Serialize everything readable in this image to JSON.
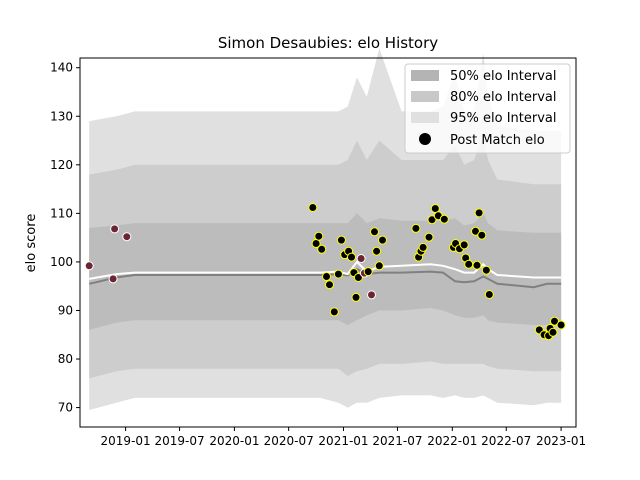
{
  "chart_data": {
    "type": "scatter",
    "title": "Simon Desaubies: elo History",
    "xlabel": "",
    "ylabel": "elo score",
    "xlim": [
      "2018-08-01",
      "2023-02-20"
    ],
    "ylim": [
      66,
      142
    ],
    "x_ticks": [
      "2019-01",
      "2019-07",
      "2020-01",
      "2020-07",
      "2021-01",
      "2021-07",
      "2022-01",
      "2022-07",
      "2023-01"
    ],
    "y_ticks": [
      70,
      80,
      90,
      100,
      110,
      120,
      130,
      140
    ],
    "grid": false,
    "legend_position": "top-right",
    "legend": [
      "50% elo Interval",
      "80% elo Interval",
      "95% elo Interval",
      "Post Match elo"
    ],
    "colors": {
      "band_95": "#e0e0e0",
      "band_80": "#cdcdcd",
      "band_50": "#bcbcbc",
      "mean_line": "#ffffff",
      "median_line": "#808080",
      "dot_early_fill": "#6b2533",
      "dot_late_fill": "#000000",
      "dot_late_edge": "#ffff00",
      "dot_early_edge": "#ffffff"
    },
    "bands": {
      "dates": [
        "2018-09-01",
        "2018-12-01",
        "2019-02-01",
        "2020-10-15",
        "2020-12-15",
        "2021-01-15",
        "2021-02-15",
        "2021-03-20",
        "2021-05-01",
        "2021-07-15",
        "2021-10-20",
        "2021-12-01",
        "2022-01-10",
        "2022-02-10",
        "2022-03-15",
        "2022-04-15",
        "2022-05-01",
        "2022-06-01",
        "2022-10-01",
        "2022-11-15",
        "2023-01-01"
      ],
      "p95_low": [
        69.5,
        71,
        72,
        72,
        71,
        70,
        71,
        71,
        72,
        72.5,
        72.5,
        72,
        72.5,
        72,
        72,
        72.5,
        72,
        71,
        70.5,
        71,
        71
      ],
      "p95_high": [
        129,
        130,
        131,
        131,
        131,
        132,
        138,
        134,
        144,
        131,
        131,
        132,
        139,
        131,
        131,
        143,
        134,
        128,
        127,
        127,
        127
      ],
      "p80_low": [
        76,
        77.5,
        78,
        78,
        78,
        76.5,
        77.5,
        78,
        79,
        79,
        79.5,
        79,
        79,
        79,
        79,
        79,
        78.5,
        78,
        77.5,
        77.5,
        77.5
      ],
      "p80_high": [
        118,
        119,
        120,
        120,
        120,
        121,
        125,
        121,
        125,
        121,
        121,
        121,
        124,
        120,
        121,
        126,
        121,
        117,
        116,
        116,
        116
      ],
      "p50_low": [
        86,
        87.5,
        88,
        88,
        88,
        87,
        88,
        89,
        90,
        90,
        90.5,
        90,
        89,
        88.5,
        88.5,
        89,
        88,
        87.5,
        87,
        87,
        87
      ],
      "p50_high": [
        107,
        107.5,
        108,
        108,
        108,
        108,
        110,
        108,
        109,
        108.5,
        108.5,
        108.5,
        109,
        107.5,
        108,
        110,
        108,
        106.5,
        106,
        106,
        106
      ],
      "mean": [
        96.5,
        97.5,
        97.8,
        97.8,
        98,
        97.5,
        100,
        98,
        99,
        99.2,
        99.5,
        99.2,
        98.5,
        97.8,
        97.8,
        99.5,
        98.5,
        97.3,
        96.8,
        96.8,
        96.8
      ],
      "median": [
        95.5,
        96.8,
        97.3,
        97.3,
        97.5,
        97.2,
        98.5,
        97.5,
        97.8,
        97.8,
        98,
        97.8,
        96,
        95.8,
        96,
        97,
        96.5,
        95.5,
        94.8,
        95.5,
        95.5
      ]
    },
    "series": [
      {
        "name": "Post Match elo",
        "points": [
          {
            "x": "2018-09-01",
            "y": 99.2,
            "group": "early"
          },
          {
            "x": "2018-11-20",
            "y": 96.5,
            "group": "early"
          },
          {
            "x": "2018-11-25",
            "y": 106.8,
            "group": "early"
          },
          {
            "x": "2019-01-05",
            "y": 105.2,
            "group": "early"
          },
          {
            "x": "2020-09-20",
            "y": 111.2,
            "group": "late"
          },
          {
            "x": "2020-10-01",
            "y": 103.8,
            "group": "late"
          },
          {
            "x": "2020-10-10",
            "y": 105.3,
            "group": "late"
          },
          {
            "x": "2020-10-20",
            "y": 102.6,
            "group": "late"
          },
          {
            "x": "2020-11-05",
            "y": 97.0,
            "group": "late"
          },
          {
            "x": "2020-11-15",
            "y": 95.3,
            "group": "late"
          },
          {
            "x": "2020-12-01",
            "y": 89.7,
            "group": "late"
          },
          {
            "x": "2020-12-15",
            "y": 97.5,
            "group": "late"
          },
          {
            "x": "2020-12-25",
            "y": 104.5,
            "group": "late"
          },
          {
            "x": "2021-01-05",
            "y": 101.5,
            "group": "late"
          },
          {
            "x": "2021-01-18",
            "y": 102.2,
            "group": "late"
          },
          {
            "x": "2021-01-28",
            "y": 101.0,
            "group": "late"
          },
          {
            "x": "2021-02-05",
            "y": 97.8,
            "group": "late"
          },
          {
            "x": "2021-02-12",
            "y": 92.7,
            "group": "late"
          },
          {
            "x": "2021-02-20",
            "y": 96.8,
            "group": "late"
          },
          {
            "x": "2021-03-01",
            "y": 100.7,
            "group": "early"
          },
          {
            "x": "2021-03-12",
            "y": 97.7,
            "group": "early"
          },
          {
            "x": "2021-03-25",
            "y": 98.0,
            "group": "late"
          },
          {
            "x": "2021-04-05",
            "y": 93.2,
            "group": "early"
          },
          {
            "x": "2021-04-15",
            "y": 106.2,
            "group": "late"
          },
          {
            "x": "2021-04-22",
            "y": 102.2,
            "group": "late"
          },
          {
            "x": "2021-05-01",
            "y": 99.2,
            "group": "late"
          },
          {
            "x": "2021-05-12",
            "y": 104.5,
            "group": "late"
          },
          {
            "x": "2021-09-01",
            "y": 106.9,
            "group": "late"
          },
          {
            "x": "2021-09-10",
            "y": 101.0,
            "group": "late"
          },
          {
            "x": "2021-09-18",
            "y": 102.2,
            "group": "late"
          },
          {
            "x": "2021-09-25",
            "y": 103.0,
            "group": "late"
          },
          {
            "x": "2021-10-15",
            "y": 105.1,
            "group": "late"
          },
          {
            "x": "2021-10-25",
            "y": 108.7,
            "group": "late"
          },
          {
            "x": "2021-11-05",
            "y": 111.0,
            "group": "late"
          },
          {
            "x": "2021-11-15",
            "y": 109.5,
            "group": "late"
          },
          {
            "x": "2021-12-05",
            "y": 108.8,
            "group": "late"
          },
          {
            "x": "2022-01-05",
            "y": 103.0,
            "group": "late"
          },
          {
            "x": "2022-01-12",
            "y": 103.8,
            "group": "late"
          },
          {
            "x": "2022-01-25",
            "y": 102.7,
            "group": "late"
          },
          {
            "x": "2022-02-10",
            "y": 103.5,
            "group": "late"
          },
          {
            "x": "2022-02-15",
            "y": 100.8,
            "group": "late"
          },
          {
            "x": "2022-02-25",
            "y": 99.5,
            "group": "late"
          },
          {
            "x": "2022-03-20",
            "y": 106.3,
            "group": "late"
          },
          {
            "x": "2022-03-25",
            "y": 99.3,
            "group": "late"
          },
          {
            "x": "2022-04-01",
            "y": 110.1,
            "group": "late"
          },
          {
            "x": "2022-04-10",
            "y": 105.5,
            "group": "late"
          },
          {
            "x": "2022-04-25",
            "y": 98.3,
            "group": "late"
          },
          {
            "x": "2022-05-05",
            "y": 93.3,
            "group": "late"
          },
          {
            "x": "2022-10-20",
            "y": 86.0,
            "group": "late"
          },
          {
            "x": "2022-11-05",
            "y": 85.0,
            "group": "late"
          },
          {
            "x": "2022-11-20",
            "y": 84.8,
            "group": "late"
          },
          {
            "x": "2022-11-25",
            "y": 86.3,
            "group": "late"
          },
          {
            "x": "2022-12-05",
            "y": 85.5,
            "group": "late"
          },
          {
            "x": "2022-12-10",
            "y": 87.8,
            "group": "late"
          },
          {
            "x": "2023-01-01",
            "y": 87.0,
            "group": "late"
          }
        ]
      }
    ]
  }
}
